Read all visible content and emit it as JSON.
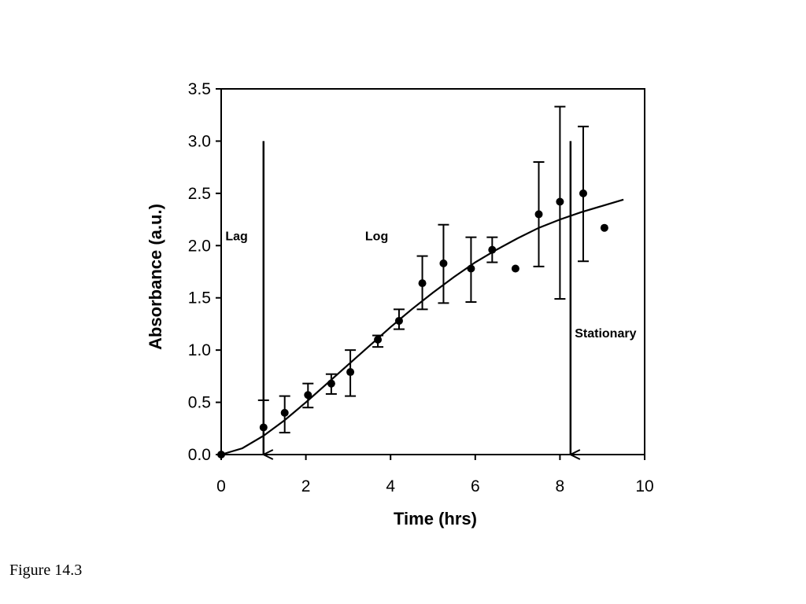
{
  "caption": "Figure 14.3",
  "chart_data": {
    "type": "scatter",
    "title": "",
    "xlabel": "Time (hrs)",
    "ylabel": "Absorbance (a.u.)",
    "xlim": [
      0,
      10
    ],
    "ylim": [
      0,
      3.5
    ],
    "x_ticks": [
      0,
      2,
      4,
      6,
      8,
      10
    ],
    "x_tick_labels": [
      "0",
      "2",
      "4",
      "6",
      "8",
      "10"
    ],
    "y_ticks": [
      0,
      0.5,
      1.0,
      1.5,
      2.0,
      2.5,
      3.0,
      3.5
    ],
    "y_tick_labels": [
      "0.0",
      "0.5",
      "1.0",
      "1.5",
      "2.0",
      "2.5",
      "3.0",
      "3.5"
    ],
    "grid": false,
    "series": [
      {
        "type": "scatter",
        "x": [
          0,
          1.0,
          1.5,
          2.05,
          2.6,
          3.05,
          3.7,
          4.2,
          4.75,
          5.25,
          5.9,
          6.4,
          6.95,
          7.5,
          8.0,
          8.55,
          9.05
        ],
        "y": [
          0.0,
          0.26,
          0.4,
          0.57,
          0.68,
          0.79,
          1.1,
          1.28,
          1.64,
          1.83,
          1.78,
          1.96,
          1.78,
          2.3,
          2.42,
          2.5,
          2.17
        ],
        "err_low": [
          null,
          null,
          0.21,
          0.45,
          0.58,
          0.56,
          1.03,
          1.2,
          1.39,
          1.45,
          1.46,
          1.84,
          null,
          1.8,
          1.49,
          1.85,
          null
        ],
        "err_high": [
          null,
          0.52,
          0.56,
          0.68,
          0.77,
          1.0,
          1.14,
          1.39,
          1.9,
          2.2,
          2.08,
          2.08,
          null,
          2.8,
          3.33,
          3.14,
          null
        ]
      },
      {
        "type": "line",
        "x": [
          0,
          0.5,
          1.0,
          1.5,
          2.0,
          2.5,
          3.0,
          3.5,
          4.0,
          4.5,
          5.0,
          5.5,
          6.0,
          6.5,
          7.0,
          7.5,
          8.0,
          8.5,
          9.0,
          9.5
        ],
        "y": [
          0.0,
          0.06,
          0.18,
          0.33,
          0.5,
          0.68,
          0.86,
          1.04,
          1.22,
          1.39,
          1.55,
          1.7,
          1.84,
          1.96,
          2.07,
          2.17,
          2.25,
          2.32,
          2.38,
          2.44
        ]
      }
    ],
    "annotations": [
      {
        "text": "Lag",
        "x": 0.1,
        "y": 2.05
      },
      {
        "text": "Log",
        "x": 3.4,
        "y": 2.05
      },
      {
        "text": "Stationary",
        "x": 8.35,
        "y": 1.12
      }
    ],
    "arrows": [
      {
        "x": 1.0,
        "y_from": 3.0,
        "y_to": 0.0
      },
      {
        "x": 8.25,
        "y_from": 3.0,
        "y_to": 0.0
      }
    ]
  }
}
